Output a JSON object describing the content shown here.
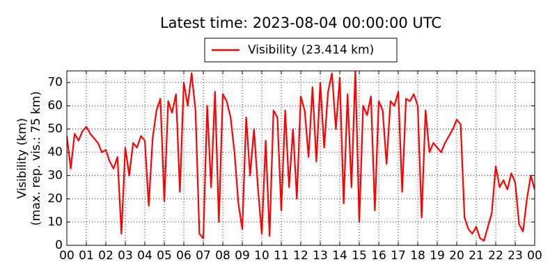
{
  "chart_data": {
    "type": "line",
    "title": "Latest time: 2023-08-04 00:00:00 UTC",
    "ylabel": [
      "Visibility (km)",
      "(max. rep. vis.: 75 km)"
    ],
    "x": [
      0,
      0.2,
      0.4,
      0.6,
      0.8,
      1,
      1.2,
      1.4,
      1.6,
      1.8,
      2,
      2.2,
      2.4,
      2.6,
      2.8,
      3,
      3.2,
      3.4,
      3.6,
      3.8,
      4,
      4.2,
      4.4,
      4.6,
      4.8,
      5,
      5.2,
      5.4,
      5.6,
      5.8,
      6,
      6.2,
      6.4,
      6.6,
      6.8,
      7,
      7.2,
      7.4,
      7.6,
      7.8,
      8,
      8.2,
      8.4,
      8.6,
      8.8,
      9,
      9.2,
      9.4,
      9.6,
      9.8,
      10,
      10.2,
      10.4,
      10.6,
      10.8,
      11,
      11.2,
      11.4,
      11.6,
      11.8,
      12,
      12.2,
      12.4,
      12.6,
      12.8,
      13,
      13.2,
      13.4,
      13.6,
      13.8,
      14,
      14.2,
      14.4,
      14.6,
      14.8,
      15,
      15.2,
      15.4,
      15.6,
      15.8,
      16,
      16.2,
      16.4,
      16.6,
      16.8,
      17,
      17.2,
      17.4,
      17.6,
      17.8,
      18,
      18.2,
      18.4,
      18.6,
      18.8,
      19,
      19.2,
      19.4,
      19.6,
      19.8,
      20,
      20.2,
      20.4,
      20.6,
      20.8,
      21,
      21.2,
      21.4,
      21.6,
      21.8,
      22,
      22.2,
      22.4,
      22.6,
      22.8,
      23,
      23.2,
      23.4,
      23.6,
      23.8,
      24
    ],
    "series": [
      {
        "name": "Visibility (23.414 km)",
        "color": "#ff0000",
        "values": [
          47,
          33,
          48,
          45,
          49,
          51,
          48,
          46,
          44,
          40,
          41,
          36,
          33,
          38,
          5,
          42,
          30,
          44,
          42,
          47,
          45,
          17,
          46,
          58,
          63,
          19,
          62,
          57,
          65,
          23,
          70,
          60,
          74,
          58,
          5,
          3,
          60,
          25,
          66,
          10,
          65,
          62,
          55,
          40,
          18,
          7,
          55,
          30,
          50,
          25,
          5,
          45,
          4,
          58,
          55,
          15,
          58,
          25,
          50,
          20,
          64,
          58,
          38,
          68,
          36,
          70,
          42,
          66,
          74,
          50,
          72,
          18,
          65,
          25,
          75,
          10,
          60,
          56,
          64,
          15,
          62,
          58,
          35,
          62,
          60,
          66,
          23,
          63,
          62,
          65,
          60,
          12,
          58,
          40,
          44,
          42,
          40,
          44,
          47,
          50,
          54,
          52,
          12,
          7,
          5,
          8,
          3,
          2,
          8,
          14,
          34,
          25,
          28,
          24,
          31,
          27,
          9,
          6,
          20,
          30,
          24
        ]
      }
    ],
    "xlim": [
      0,
      24
    ],
    "xticks": [
      {
        "value": 0,
        "label": "00"
      },
      {
        "value": 1,
        "label": "01"
      },
      {
        "value": 2,
        "label": "02"
      },
      {
        "value": 3,
        "label": "03"
      },
      {
        "value": 4,
        "label": "04"
      },
      {
        "value": 5,
        "label": "05"
      },
      {
        "value": 6,
        "label": "06"
      },
      {
        "value": 7,
        "label": "07"
      },
      {
        "value": 8,
        "label": "08"
      },
      {
        "value": 9,
        "label": "09"
      },
      {
        "value": 10,
        "label": "10"
      },
      {
        "value": 11,
        "label": "11"
      },
      {
        "value": 12,
        "label": "12"
      },
      {
        "value": 13,
        "label": "13"
      },
      {
        "value": 14,
        "label": "14"
      },
      {
        "value": 15,
        "label": "15"
      },
      {
        "value": 16,
        "label": "16"
      },
      {
        "value": 17,
        "label": "17"
      },
      {
        "value": 18,
        "label": "18"
      },
      {
        "value": 19,
        "label": "19"
      },
      {
        "value": 20,
        "label": "20"
      },
      {
        "value": 21,
        "label": "21"
      },
      {
        "value": 22,
        "label": "22"
      },
      {
        "value": 23,
        "label": "23"
      },
      {
        "value": 24,
        "label": "00"
      }
    ],
    "ylim": [
      0,
      75
    ],
    "yticks": [
      0,
      10,
      20,
      30,
      40,
      50,
      60,
      70
    ],
    "grid": true,
    "legend": "top"
  }
}
